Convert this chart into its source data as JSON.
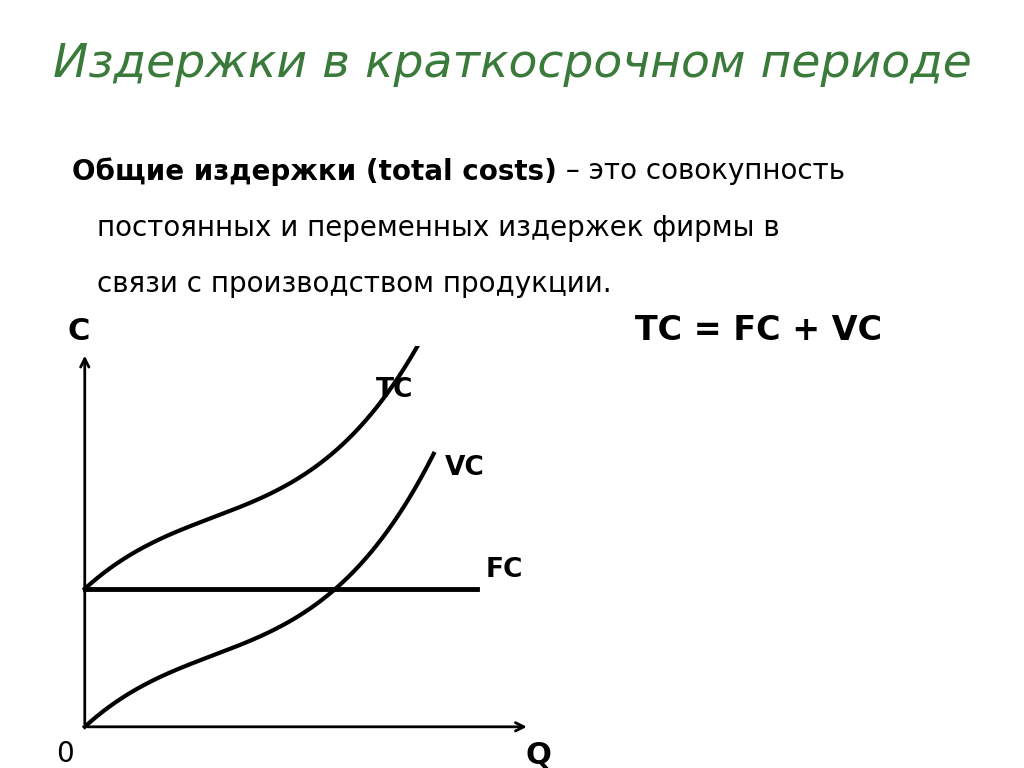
{
  "title": "Издержки в краткосрочном периоде",
  "title_color": "#3a7a3a",
  "title_fontsize": 34,
  "background_color": "#ffffff",
  "text_bold": "Общие издержки (total costs)",
  "text_dash_rest": " – это совокупность",
  "text_line2": "постоянных и переменных издержек фирмы в",
  "text_line3": "связи с производством продукции.",
  "formula": "TC = FC + VC",
  "label_C": "С",
  "label_Q": "Q",
  "label_zero": "0",
  "label_TC": "TC",
  "label_VC": "VC",
  "label_FC": "FC",
  "fc_level": 0.38,
  "curve_color": "#000000",
  "axis_color": "#000000",
  "text_fontsize": 20,
  "formula_fontsize": 24,
  "curve_linewidth": 3.0,
  "axis_linewidth": 2.0
}
